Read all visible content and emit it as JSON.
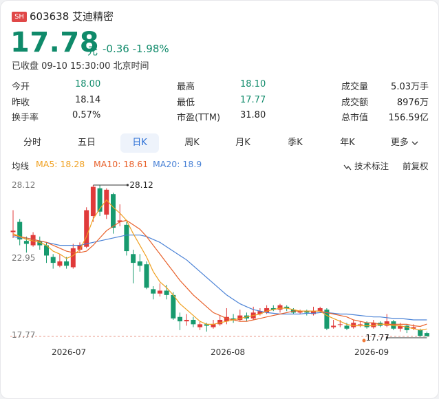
{
  "header": {
    "badge": "SH",
    "code_name": "603638 艾迪精密",
    "price": "17.78",
    "unit": "元",
    "change": "-0.36  -1.98%",
    "status": "已收盘 09-10 15:30:00 北京时间"
  },
  "stats": [
    {
      "label": "今开",
      "value": "18.00",
      "color": "green"
    },
    {
      "label": "最高",
      "value": "18.10",
      "color": "green"
    },
    {
      "label": "成交量",
      "value": "5.03万手",
      "color": "black"
    },
    {
      "label": "昨收",
      "value": "18.14",
      "color": "black"
    },
    {
      "label": "最低",
      "value": "17.77",
      "color": "green"
    },
    {
      "label": "成交额",
      "value": "8976万",
      "color": "black"
    },
    {
      "label": "换手率",
      "value": "0.57%",
      "color": "black"
    },
    {
      "label": "市盈(TTM)",
      "value": "31.80",
      "color": "black"
    },
    {
      "label": "总市值",
      "value": "156.59亿",
      "color": "black"
    }
  ],
  "tabs": [
    "分时",
    "五日",
    "日K",
    "周K",
    "月K",
    "季K",
    "年K",
    "更多"
  ],
  "active_tab": "日K",
  "legend": {
    "title": "均线",
    "ma5": "MA5: 18.28",
    "ma10": "MA10: 18.61",
    "ma20": "MA20: 18.9",
    "tech": "技术标注",
    "adjust": "前复权"
  },
  "colors": {
    "up": "#e03a3a",
    "down": "#179a6e",
    "ma5": "#f0a020",
    "ma10": "#e8602a",
    "ma20": "#4a82d6",
    "price": "#0f8a6a"
  },
  "chart_data": {
    "type": "candlestick",
    "y_ticks": [
      "28.12",
      "22.95",
      "17.77"
    ],
    "ylim": [
      17.77,
      28.12
    ],
    "x_ticks": [
      "2026-07",
      "2026-08",
      "2026-09"
    ],
    "max_label": "28.12",
    "min_label": "17.77",
    "candles": [
      [
        24.9,
        25.0,
        26.4,
        24.5
      ],
      [
        25.6,
        24.4,
        25.8,
        24.0
      ],
      [
        24.3,
        24.1,
        24.6,
        23.5
      ],
      [
        24.0,
        24.7,
        24.9,
        23.9
      ],
      [
        24.3,
        24.0,
        24.6,
        23.7
      ],
      [
        24.0,
        23.3,
        24.2,
        22.8
      ],
      [
        23.2,
        22.8,
        23.4,
        22.4
      ],
      [
        22.6,
        22.9,
        23.4,
        22.5
      ],
      [
        22.9,
        22.6,
        23.2,
        22.4
      ],
      [
        22.5,
        23.8,
        24.1,
        22.4
      ],
      [
        23.7,
        24.0,
        24.2,
        23.5
      ],
      [
        23.9,
        26.4,
        26.6,
        23.8
      ],
      [
        26.0,
        28.0,
        28.12,
        25.6
      ],
      [
        27.9,
        26.3,
        28.1,
        26.0
      ],
      [
        26.1,
        27.8,
        27.9,
        25.8
      ],
      [
        27.5,
        25.2,
        27.6,
        24.8
      ],
      [
        25.6,
        25.7,
        26.8,
        25.3
      ],
      [
        25.4,
        23.6,
        25.6,
        23.3
      ],
      [
        23.4,
        22.8,
        23.7,
        21.4
      ],
      [
        22.9,
        22.6,
        23.4,
        22.2
      ],
      [
        22.7,
        21.1,
        22.9,
        21.0
      ],
      [
        21.0,
        20.7,
        21.2,
        20.3
      ],
      [
        20.7,
        20.9,
        21.4,
        20.5
      ],
      [
        20.9,
        20.6,
        21.3,
        20.3
      ],
      [
        20.6,
        19.0,
        20.8,
        18.9
      ],
      [
        19.1,
        18.8,
        19.4,
        18.2
      ],
      [
        18.8,
        18.9,
        19.3,
        18.5
      ],
      [
        18.9,
        18.6,
        19.1,
        18.4
      ],
      [
        18.4,
        18.6,
        18.8,
        18.2
      ],
      [
        18.6,
        18.5,
        18.7,
        18.1
      ],
      [
        18.4,
        18.6,
        18.9,
        18.3
      ],
      [
        18.6,
        18.9,
        19.2,
        18.5
      ],
      [
        18.8,
        19.1,
        19.7,
        18.6
      ],
      [
        19.0,
        18.9,
        19.3,
        18.7
      ],
      [
        18.9,
        19.2,
        19.6,
        18.8
      ],
      [
        19.2,
        19.0,
        19.4,
        18.8
      ],
      [
        19.0,
        19.4,
        19.8,
        18.9
      ],
      [
        19.3,
        19.5,
        19.7,
        19.2
      ],
      [
        19.4,
        19.7,
        19.9,
        19.3
      ],
      [
        19.7,
        19.6,
        19.9,
        19.5
      ],
      [
        19.6,
        19.9,
        20.0,
        19.4
      ],
      [
        19.8,
        19.7,
        19.9,
        19.5
      ],
      [
        19.6,
        19.4,
        19.7,
        19.3
      ],
      [
        19.4,
        19.5,
        19.6,
        19.3
      ],
      [
        19.5,
        19.4,
        19.6,
        19.2
      ],
      [
        19.3,
        19.5,
        19.8,
        19.2
      ],
      [
        19.5,
        19.7,
        19.8,
        19.4
      ],
      [
        19.6,
        18.3,
        19.7,
        18.2
      ],
      [
        18.4,
        18.5,
        18.9,
        18.3
      ],
      [
        18.6,
        18.6,
        18.9,
        18.4
      ],
      [
        18.5,
        18.3,
        18.7,
        18.2
      ],
      [
        18.4,
        18.7,
        18.9,
        18.3
      ],
      [
        18.6,
        18.6,
        18.8,
        18.4
      ],
      [
        18.7,
        18.4,
        18.8,
        18.3
      ],
      [
        18.4,
        18.7,
        18.9,
        18.3
      ],
      [
        18.7,
        18.5,
        18.8,
        18.4
      ],
      [
        18.5,
        18.8,
        19.3,
        18.4
      ],
      [
        18.8,
        18.3,
        18.9,
        18.2
      ],
      [
        18.3,
        18.5,
        18.7,
        18.1
      ],
      [
        18.5,
        18.2,
        18.6,
        18.0
      ],
      [
        18.3,
        18.4,
        18.6,
        18.2
      ],
      [
        18.2,
        17.8,
        18.3,
        17.77
      ],
      [
        18.0,
        17.78,
        18.1,
        17.77
      ]
    ],
    "ma5": [
      24.8,
      24.6,
      24.4,
      24.3,
      24.2,
      24.0,
      23.6,
      23.4,
      23.1,
      23.3,
      23.7,
      24.6,
      25.8,
      26.5,
      27.1,
      26.6,
      26.2,
      25.7,
      24.8,
      24.0,
      23.2,
      22.2,
      21.5,
      21.1,
      20.6,
      20.0,
      19.6,
      19.2,
      18.8,
      18.6,
      18.6,
      18.7,
      18.8,
      18.9,
      19.0,
      19.1,
      19.2,
      19.3,
      19.5,
      19.6,
      19.7,
      19.7,
      19.6,
      19.5,
      19.5,
      19.5,
      19.5,
      19.2,
      19.0,
      18.8,
      18.6,
      18.5,
      18.5,
      18.5,
      18.5,
      18.6,
      18.6,
      18.5,
      18.5,
      18.4,
      18.3,
      18.2,
      18.28
    ],
    "ma10": [
      24.7,
      24.6,
      24.5,
      24.4,
      24.3,
      24.2,
      24.0,
      23.8,
      23.6,
      23.5,
      23.5,
      23.6,
      24.0,
      24.5,
      25.0,
      25.3,
      25.6,
      25.7,
      25.4,
      25.1,
      24.6,
      24.0,
      23.4,
      22.8,
      22.2,
      21.6,
      21.1,
      20.6,
      20.2,
      19.8,
      19.4,
      19.2,
      19.0,
      18.9,
      18.8,
      18.8,
      18.9,
      19.0,
      19.1,
      19.2,
      19.3,
      19.4,
      19.5,
      19.5,
      19.5,
      19.5,
      19.5,
      19.4,
      19.3,
      19.2,
      19.1,
      18.9,
      18.8,
      18.7,
      18.7,
      18.6,
      18.6,
      18.6,
      18.6,
      18.6,
      18.5,
      18.45,
      18.61
    ],
    "ma20": [
      24.6,
      24.5,
      24.5,
      24.4,
      24.3,
      24.2,
      24.1,
      24.0,
      24.0,
      24.0,
      24.0,
      24.1,
      24.2,
      24.3,
      24.4,
      24.5,
      24.6,
      24.7,
      24.7,
      24.7,
      24.6,
      24.4,
      24.2,
      23.9,
      23.6,
      23.3,
      23.0,
      22.6,
      22.2,
      21.8,
      21.4,
      21.0,
      20.6,
      20.3,
      20.0,
      19.8,
      19.6,
      19.5,
      19.4,
      19.35,
      19.3,
      19.3,
      19.3,
      19.3,
      19.35,
      19.35,
      19.4,
      19.4,
      19.35,
      19.3,
      19.3,
      19.25,
      19.2,
      19.15,
      19.1,
      19.1,
      19.05,
      19.0,
      19.0,
      18.95,
      18.9,
      18.9,
      18.9
    ]
  }
}
